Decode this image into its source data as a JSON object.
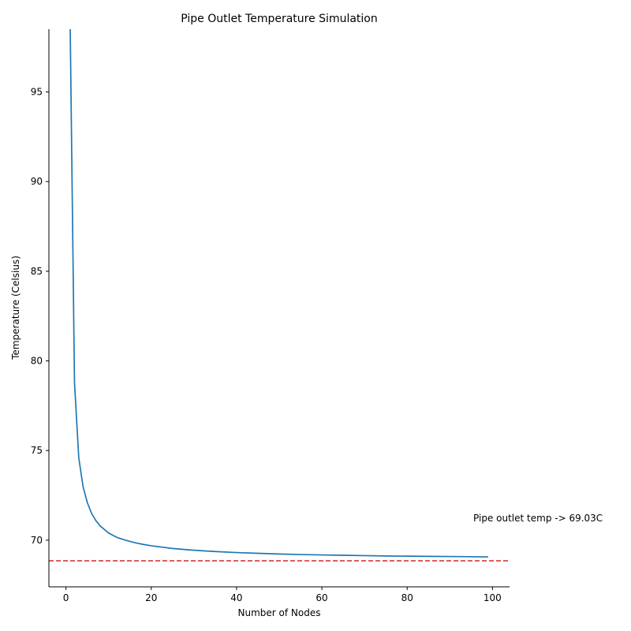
{
  "chart_data": {
    "type": "line",
    "title": "Pipe Outlet Temperature Simulation",
    "xlabel": "Number of Nodes",
    "ylabel": "Temperature (Celsius)",
    "xlim": [
      -4,
      104
    ],
    "ylim": [
      67.4,
      98.5
    ],
    "xticks": [
      0,
      20,
      40,
      60,
      80,
      100
    ],
    "yticks": [
      70,
      75,
      80,
      85,
      90,
      95
    ],
    "grid": false,
    "series": [
      {
        "color": "#1f77b4",
        "x": [
          1,
          2,
          3,
          4,
          5,
          6,
          7,
          8,
          9,
          10,
          12,
          14,
          16,
          18,
          20,
          25,
          30,
          35,
          40,
          45,
          50,
          55,
          60,
          65,
          70,
          75,
          80,
          85,
          90,
          95,
          99
        ],
        "y": [
          98.5,
          78.8,
          74.6,
          73.0,
          72.1,
          71.5,
          71.1,
          70.8,
          70.6,
          70.4,
          70.15,
          70.0,
          69.87,
          69.77,
          69.69,
          69.54,
          69.44,
          69.37,
          69.31,
          69.27,
          69.23,
          69.2,
          69.18,
          69.16,
          69.14,
          69.12,
          69.11,
          69.1,
          69.09,
          69.08,
          69.07
        ]
      }
    ],
    "reference_line": {
      "y": 68.85,
      "color": "#d62728",
      "style": "dashed"
    },
    "annotation": {
      "text": "Pipe outlet temp -> 69.03C",
      "x": 95.5,
      "y": 71.05
    }
  }
}
